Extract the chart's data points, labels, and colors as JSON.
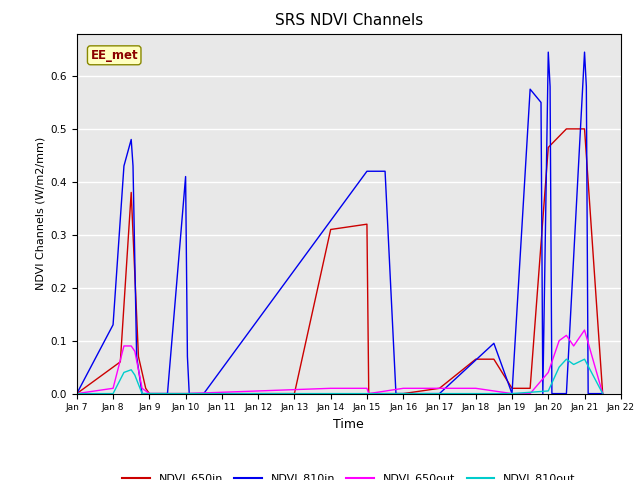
{
  "title": "SRS NDVI Channels",
  "xlabel": "Time",
  "ylabel": "NDVI Channels (W/m2/mm)",
  "ylim": [
    0.0,
    0.68
  ],
  "annotation_text": "EE_met",
  "annotation_color": "#8B0000",
  "annotation_bg": "#FFFFC0",
  "background_color": "#E8E8E8",
  "grid_color": "white",
  "series": {
    "NDVI_650in": {
      "color": "#CC0000",
      "times": [
        7.0,
        8.0,
        8.2,
        8.5,
        8.7,
        8.9,
        9.0,
        9.5,
        10.0,
        13.0,
        14.0,
        15.0,
        15.05,
        15.5,
        16.0,
        17.0,
        18.0,
        18.5,
        19.0,
        19.5,
        20.0,
        20.5,
        21.0,
        21.5
      ],
      "values": [
        0.0,
        0.05,
        0.06,
        0.38,
        0.07,
        0.01,
        0.0,
        0.0,
        0.0,
        0.0,
        0.31,
        0.32,
        0.0,
        0.0,
        0.0,
        0.01,
        0.065,
        0.065,
        0.01,
        0.01,
        0.465,
        0.5,
        0.5,
        0.0
      ]
    },
    "NDVI_810in": {
      "color": "#0000EE",
      "times": [
        7.0,
        8.0,
        8.3,
        8.5,
        8.55,
        8.65,
        8.8,
        9.0,
        9.5,
        10.0,
        10.05,
        10.1,
        10.5,
        15.0,
        15.5,
        15.8,
        15.85,
        16.0,
        17.0,
        18.5,
        19.0,
        19.5,
        19.8,
        19.85,
        20.0,
        20.05,
        20.1,
        20.5,
        21.0,
        21.05,
        21.1,
        21.5
      ],
      "values": [
        0.0,
        0.13,
        0.43,
        0.48,
        0.43,
        0.07,
        0.0,
        0.0,
        0.0,
        0.41,
        0.07,
        0.0,
        0.0,
        0.42,
        0.42,
        0.0,
        0.0,
        0.0,
        0.0,
        0.095,
        0.0,
        0.575,
        0.55,
        0.0,
        0.645,
        0.58,
        0.0,
        0.0,
        0.645,
        0.58,
        0.0,
        0.0
      ]
    },
    "NDVI_650out": {
      "color": "#FF00FF",
      "times": [
        7.0,
        8.0,
        8.3,
        8.5,
        8.6,
        8.8,
        9.0,
        9.5,
        10.0,
        14.0,
        15.0,
        15.05,
        16.0,
        17.0,
        18.0,
        19.0,
        19.5,
        20.0,
        20.3,
        20.5,
        20.7,
        21.0,
        21.5
      ],
      "values": [
        0.0,
        0.01,
        0.09,
        0.09,
        0.08,
        0.01,
        0.0,
        0.0,
        0.0,
        0.01,
        0.01,
        0.0,
        0.01,
        0.01,
        0.01,
        0.0,
        0.0,
        0.04,
        0.1,
        0.11,
        0.09,
        0.12,
        0.0
      ]
    },
    "NDVI_810out": {
      "color": "#00CCCC",
      "times": [
        7.0,
        8.0,
        8.3,
        8.5,
        8.6,
        8.8,
        9.0,
        14.0,
        15.0,
        19.0,
        20.0,
        20.3,
        20.5,
        20.7,
        21.0,
        21.5
      ],
      "values": [
        0.0,
        0.0,
        0.04,
        0.045,
        0.035,
        0.0,
        0.0,
        0.0,
        0.0,
        0.0,
        0.005,
        0.05,
        0.065,
        0.055,
        0.065,
        0.0
      ]
    }
  },
  "xticks": [
    7,
    8,
    9,
    10,
    11,
    12,
    13,
    14,
    15,
    16,
    17,
    18,
    19,
    20,
    21,
    22
  ],
  "xtick_labels": [
    "Jan 7",
    "Jan 8",
    "Jan 9",
    "Jan 10",
    "Jan 11",
    "Jan 12",
    "Jan 13",
    "Jan 14",
    "Jan 15",
    "Jan 16",
    "Jan 17",
    "Jan 18",
    "Jan 19",
    "Jan 20",
    "Jan 21",
    "Jan 22"
  ]
}
